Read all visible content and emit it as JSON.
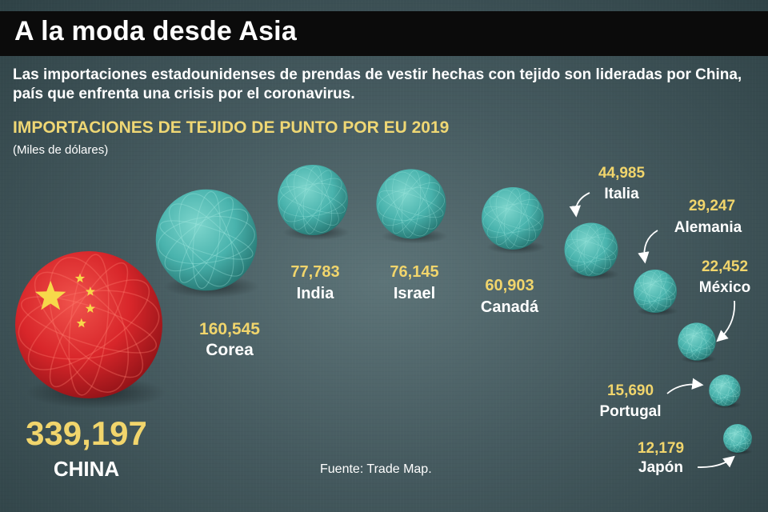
{
  "header": {
    "title": "A la moda desde Asia",
    "subtitle": "Las importaciones estadounidenses de prendas de vestir hechas con tejido son lideradas por China, país que enfrenta una crisis por el coronavirus.",
    "chart_title": "IMPORTACIONES DE TEJIDO DE PUNTO POR EU 2019",
    "unit": "(Miles de dólares)"
  },
  "source": "Fuente: Trade Map.",
  "colors": {
    "background": "#4e6468",
    "title_bar": "#0b0b0b",
    "yarn": "#49b3ad",
    "china_yarn": "#d8262a",
    "value_text": "#f1d56c",
    "label_text": "#ffffff"
  },
  "icons": {
    "bubble": "yarn-ball-icon",
    "china_flag": "china-flag-stars-icon",
    "arrow": "curved-arrow-icon"
  },
  "chart_data": {
    "type": "bubble",
    "title": "IMPORTACIONES DE TEJIDO DE PUNTO POR EU 2019",
    "unit": "(Miles de dólares)",
    "categories": [
      "CHINA",
      "Corea",
      "India",
      "Israel",
      "Canadá",
      "Italia",
      "Alemania",
      "México",
      "Portugal",
      "Japón"
    ],
    "values": [
      339197,
      160545,
      77783,
      76145,
      60903,
      44985,
      29247,
      22452,
      15690,
      12179
    ],
    "value_labels": [
      "339,197",
      "160,545",
      "77,783",
      "76,145",
      "60,903",
      "44,985",
      "29,247",
      "22,452",
      "15,690",
      "12,179"
    ]
  }
}
